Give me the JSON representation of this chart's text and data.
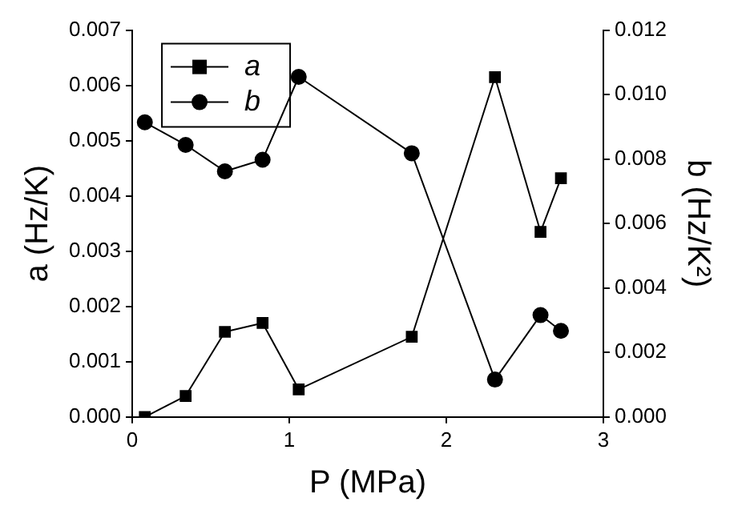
{
  "chart_data": {
    "type": "line",
    "xlabel": "P (MPa)",
    "ylabel": "a (Hz/K)",
    "y2label": "b (Hz/K²)",
    "series": [
      {
        "name": "a",
        "color": "#000000",
        "marker": "square",
        "x": [
          0.08,
          0.34,
          0.59,
          0.83,
          1.06,
          1.78,
          2.31,
          2.6,
          2.73
        ],
        "values": [
          0,
          0.00038,
          0.00154,
          0.0017,
          0.0005,
          0.00145,
          0.00615,
          0.00335,
          0.00432
        ]
      },
      {
        "name": "b",
        "color": "#000000",
        "marker": "circle",
        "axis": "y2",
        "x": [
          0.08,
          0.34,
          0.59,
          0.83,
          1.06,
          1.78,
          2.31,
          2.6,
          2.73
        ],
        "values": [
          0.00914,
          0.00844,
          0.00762,
          0.00798,
          0.01055,
          0.00818,
          0.00116,
          0.00316,
          0.00267
        ]
      }
    ],
    "xlim": [
      0,
      3
    ],
    "xticks": [
      0,
      1,
      2,
      3
    ],
    "ylim": [
      0,
      0.007
    ],
    "yticks": [
      {
        "value": 0,
        "label": "0.000"
      },
      0.001,
      0.002,
      0.003,
      0.004,
      0.005,
      0.006,
      0.007
    ],
    "y2lim": [
      0,
      0.012
    ],
    "y2ticks": [
      {
        "value": 0,
        "label": "0.000"
      },
      0.002,
      0.004,
      0.006,
      0.008,
      {
        "value": 0.01,
        "label": "0.010"
      },
      0.012
    ],
    "legend": "top left",
    "grid": false
  }
}
